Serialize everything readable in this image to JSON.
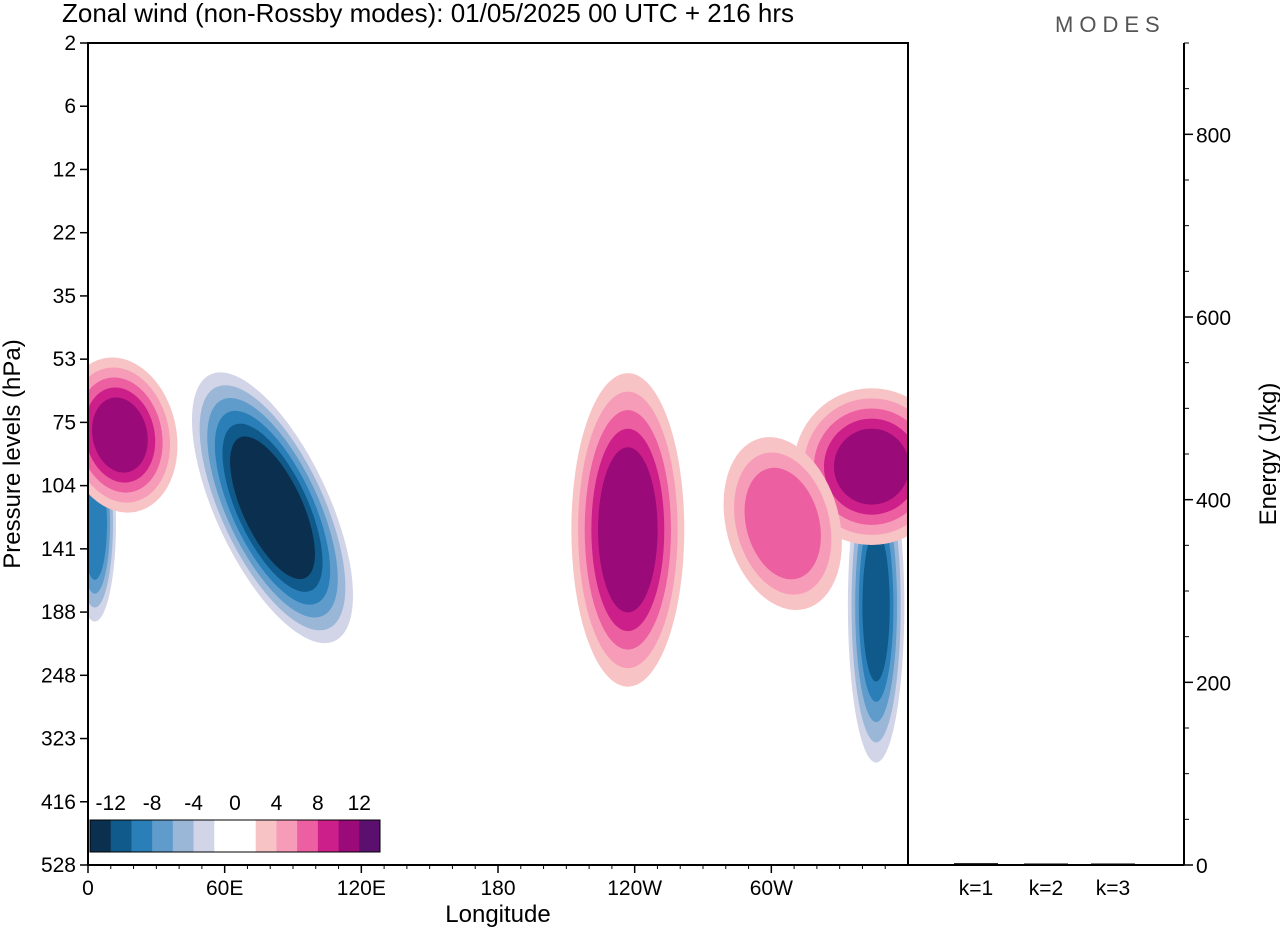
{
  "chart_data": {
    "type": "heatmap",
    "title": "Zonal wind (non-Rossby modes):  01/05/2025  00 UTC  + 216 hrs",
    "logo": "MODES",
    "xlabel": "Longitude",
    "ylabel": "Pressure levels (hPa)",
    "x_ticks": [
      {
        "lon": 0,
        "label": "0"
      },
      {
        "lon": 60,
        "label": "60E"
      },
      {
        "lon": 120,
        "label": "120E"
      },
      {
        "lon": 180,
        "label": "180"
      },
      {
        "lon": 240,
        "label": "120W"
      },
      {
        "lon": 300,
        "label": "60W"
      }
    ],
    "y_levels": [
      "2",
      "6",
      "12",
      "22",
      "35",
      "53",
      "75",
      "104",
      "141",
      "188",
      "248",
      "323",
      "416",
      "528"
    ],
    "colorbar": {
      "labels": [
        "-12",
        "-8",
        "-4",
        "0",
        "4",
        "8",
        "12"
      ],
      "colors": [
        "#0b2f4e",
        "#0f5a8a",
        "#2a7fb8",
        "#5f9ccb",
        "#9ab7d8",
        "#d2d5e8",
        "#ffffff",
        "#ffffff",
        "#f8c3c4",
        "#f79cb8",
        "#ec5fa0",
        "#cc1f89",
        "#9a0a78",
        "#5b0f6f"
      ]
    },
    "contours": [
      {
        "name": "neg-jet-east-indian",
        "value": -14,
        "lon": 81,
        "level_index": 7.35,
        "lon_half_width": 16,
        "level_half_width": 1.5,
        "rotate": -25
      },
      {
        "name": "neg-jet-west-edge",
        "value": -9,
        "lon": 3,
        "level_index": 7.6,
        "lon_half_width": 6,
        "level_half_width": 1.0,
        "rotate": 0
      },
      {
        "name": "neg-jet-east-pacific",
        "value": -10,
        "lon": 346,
        "level_index": 8.9,
        "lon_half_width": 8,
        "level_half_width": 1.6,
        "rotate": 0
      },
      {
        "name": "pos-jet-west-upper",
        "value": 10,
        "lon": 14,
        "level_index": 6.2,
        "lon_half_width": 16,
        "level_half_width": 0.8,
        "rotate": -12
      },
      {
        "name": "pos-jet-120w",
        "value": 11,
        "lon": 237,
        "level_index": 7.7,
        "lon_half_width": 16,
        "level_half_width": 1.6,
        "rotate": 0
      },
      {
        "name": "pos-jet-east-upper",
        "value": 10,
        "lon": 344,
        "level_index": 6.7,
        "lon_half_width": 22,
        "level_half_width": 0.8,
        "rotate": 0
      },
      {
        "name": "pos-jet-60w",
        "value": 7,
        "lon": 305,
        "level_index": 7.6,
        "lon_half_width": 16,
        "level_half_width": 0.9,
        "rotate": -15
      }
    ],
    "energy_axis": {
      "label": "Energy (J/kg)",
      "ticks": [
        0,
        200,
        400,
        600,
        800
      ],
      "ylim": [
        0,
        900
      ]
    },
    "energy_bars": [
      {
        "label": "k=1",
        "value": 2
      },
      {
        "label": "k=2",
        "value": 1
      },
      {
        "label": "k=3",
        "value": 0.5
      }
    ]
  }
}
